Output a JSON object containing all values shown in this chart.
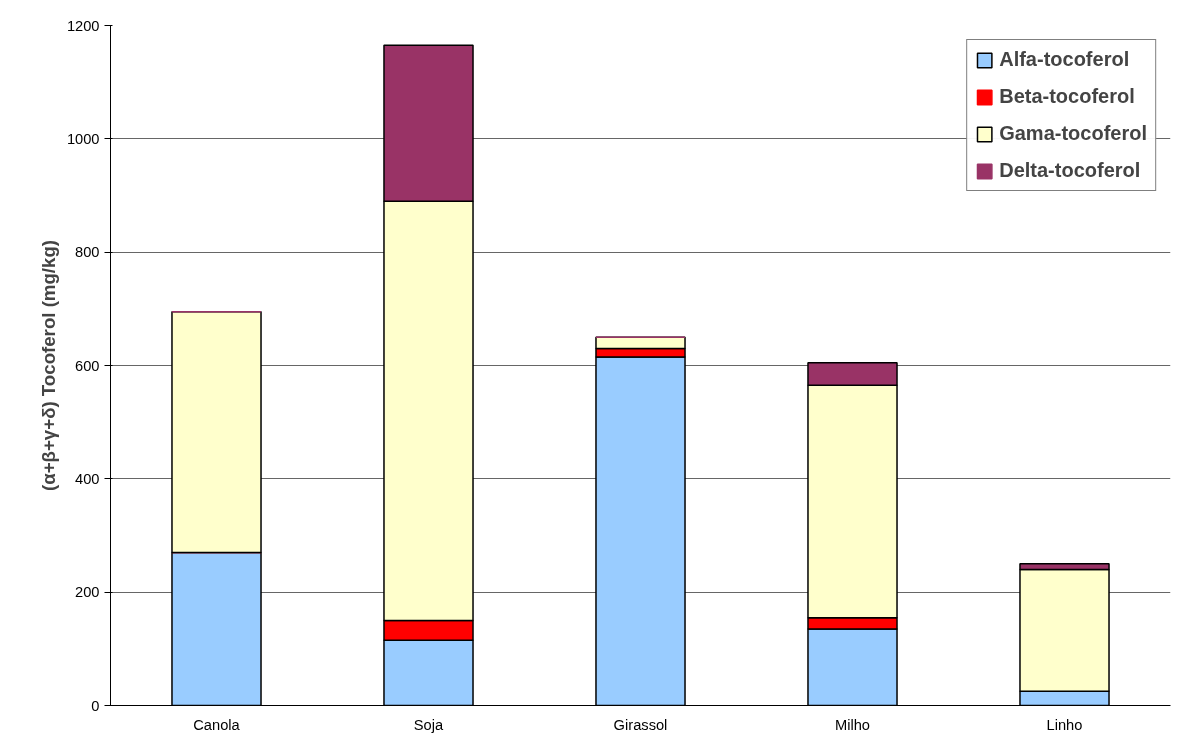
{
  "chart_data": {
    "type": "bar",
    "stacked": true,
    "ylabel": "(α+β+γ+δ) Tocoferol (mg/kg)",
    "categories": [
      "Canola",
      "Soja",
      "Girassol",
      "Milho",
      "Linho"
    ],
    "series": [
      {
        "name": "Alfa-tocoferol",
        "color": "#99ccff",
        "values": [
          270,
          115,
          615,
          135,
          25
        ]
      },
      {
        "name": "Beta-tocoferol",
        "color": "#ff0000",
        "values": [
          0,
          35,
          15,
          20,
          0
        ]
      },
      {
        "name": "Gama-tocoferol",
        "color": "#ffffcc",
        "values": [
          425,
          740,
          20,
          410,
          215
        ]
      },
      {
        "name": "Delta-tocoferol",
        "color": "#993366",
        "values": [
          0,
          275,
          0,
          40,
          10
        ]
      }
    ],
    "ylim": [
      0,
      1200
    ],
    "yticks": [
      0,
      200,
      400,
      600,
      800,
      1000,
      1200
    ],
    "grid": "y",
    "legend": "top right"
  }
}
